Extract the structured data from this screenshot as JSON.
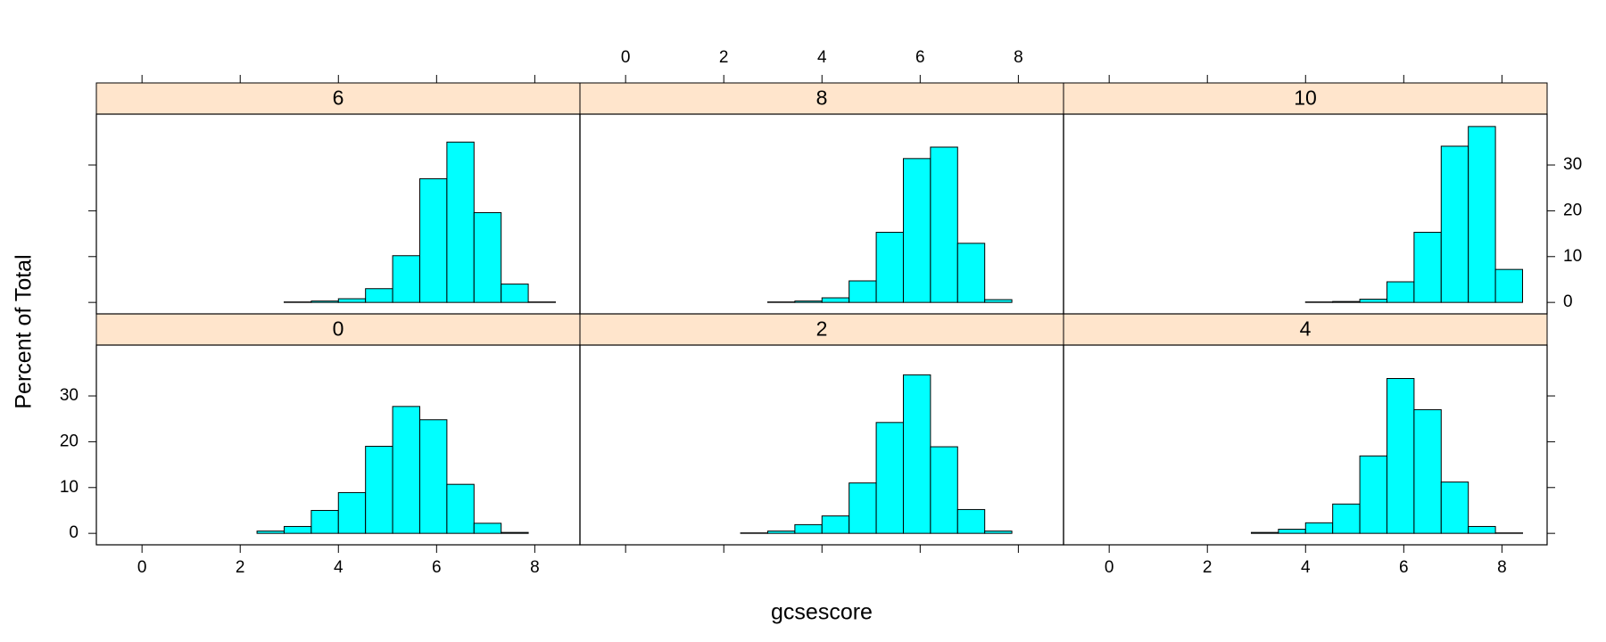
{
  "xlabel": "gcsescore",
  "ylabel": "Percent of Total",
  "chart_data": [
    {
      "type": "histogram",
      "title": "0",
      "color": "#00ffff",
      "strip_color": "#ffe5cc",
      "bins": [
        -0.42,
        0.1325,
        0.685,
        1.2375,
        1.79,
        2.3425,
        2.895,
        3.4475,
        4.0,
        4.5525,
        5.105,
        5.6575,
        6.21,
        6.7625,
        7.315,
        7.8675,
        8.42
      ],
      "values": [
        0,
        0,
        0,
        0,
        0,
        0.5,
        1.5,
        5.0,
        8.9,
        19.0,
        27.7,
        24.8,
        10.7,
        2.2,
        0.2,
        0
      ],
      "xlim": [
        -0.93,
        8.92
      ],
      "ylim": [
        -2.5,
        41.1
      ],
      "xticks": [
        0,
        2,
        4,
        6,
        8
      ],
      "yticks": [
        0,
        10,
        20,
        30
      ]
    },
    {
      "type": "histogram",
      "title": "2",
      "color": "#00ffff",
      "strip_color": "#ffe5cc",
      "bins": [
        -0.42,
        0.1325,
        0.685,
        1.2375,
        1.79,
        2.3425,
        2.895,
        3.4475,
        4.0,
        4.5525,
        5.105,
        5.6575,
        6.21,
        6.7625,
        7.315,
        7.8675,
        8.42
      ],
      "values": [
        0,
        0,
        0,
        0,
        0,
        0.1,
        0.5,
        1.9,
        3.8,
        11.0,
        24.2,
        34.6,
        18.9,
        5.2,
        0.5,
        0
      ],
      "xlim": [
        -0.93,
        8.92
      ],
      "ylim": [
        -2.5,
        41.1
      ],
      "xticks": [
        0,
        2,
        4,
        6,
        8
      ],
      "yticks": [
        0,
        10,
        20,
        30
      ]
    },
    {
      "type": "histogram",
      "title": "4",
      "color": "#00ffff",
      "strip_color": "#ffe5cc",
      "bins": [
        -0.42,
        0.1325,
        0.685,
        1.2375,
        1.79,
        2.3425,
        2.895,
        3.4475,
        4.0,
        4.5525,
        5.105,
        5.6575,
        6.21,
        6.7625,
        7.315,
        7.8675,
        8.42
      ],
      "values": [
        0,
        0,
        0,
        0,
        0,
        0,
        0.2,
        0.9,
        2.3,
        6.4,
        16.9,
        33.8,
        27.0,
        11.2,
        1.5,
        0.1
      ],
      "xlim": [
        -0.93,
        8.92
      ],
      "ylim": [
        -2.5,
        41.1
      ],
      "xticks": [
        0,
        2,
        4,
        6,
        8
      ],
      "yticks": [
        0,
        10,
        20,
        30
      ]
    },
    {
      "type": "histogram",
      "title": "6",
      "color": "#00ffff",
      "strip_color": "#ffe5cc",
      "bins": [
        -0.42,
        0.1325,
        0.685,
        1.2375,
        1.79,
        2.3425,
        2.895,
        3.4475,
        4.0,
        4.5525,
        5.105,
        5.6575,
        6.21,
        6.7625,
        7.315,
        7.8675,
        8.42
      ],
      "values": [
        0,
        0,
        0,
        0,
        0,
        0,
        0.1,
        0.3,
        0.8,
        3.0,
        10.2,
        27.0,
        35.0,
        19.6,
        4.0,
        0.1
      ],
      "xlim": [
        -0.93,
        8.92
      ],
      "ylim": [
        -2.5,
        41.1
      ],
      "xticks": [
        0,
        2,
        4,
        6,
        8
      ],
      "yticks": [
        0,
        10,
        20,
        30
      ]
    },
    {
      "type": "histogram",
      "title": "8",
      "color": "#00ffff",
      "strip_color": "#ffe5cc",
      "bins": [
        -0.42,
        0.1325,
        0.685,
        1.2375,
        1.79,
        2.3425,
        2.895,
        3.4475,
        4.0,
        4.5525,
        5.105,
        5.6575,
        6.21,
        6.7625,
        7.315,
        7.8675,
        8.42
      ],
      "values": [
        0,
        0,
        0,
        0,
        0,
        0,
        0.1,
        0.3,
        1.0,
        4.7,
        15.3,
        31.4,
        33.9,
        12.9,
        0.6,
        0
      ],
      "xlim": [
        -0.93,
        8.92
      ],
      "ylim": [
        -2.5,
        41.1
      ],
      "xticks": [
        0,
        2,
        4,
        6,
        8
      ],
      "yticks": [
        0,
        10,
        20,
        30
      ]
    },
    {
      "type": "histogram",
      "title": "10",
      "color": "#00ffff",
      "strip_color": "#ffe5cc",
      "bins": [
        -0.42,
        0.1325,
        0.685,
        1.2375,
        1.79,
        2.3425,
        2.895,
        3.4475,
        4.0,
        4.5525,
        5.105,
        5.6575,
        6.21,
        6.7625,
        7.315,
        7.8675,
        8.42
      ],
      "values": [
        0,
        0,
        0,
        0,
        0,
        0,
        0,
        0,
        0.1,
        0.2,
        0.7,
        4.5,
        15.3,
        34.1,
        38.4,
        7.2
      ],
      "xlim": [
        -0.93,
        8.92
      ],
      "ylim": [
        -2.5,
        41.1
      ],
      "xticks": [
        0,
        2,
        4,
        6,
        8
      ],
      "yticks": [
        0,
        10,
        20,
        30
      ]
    }
  ]
}
